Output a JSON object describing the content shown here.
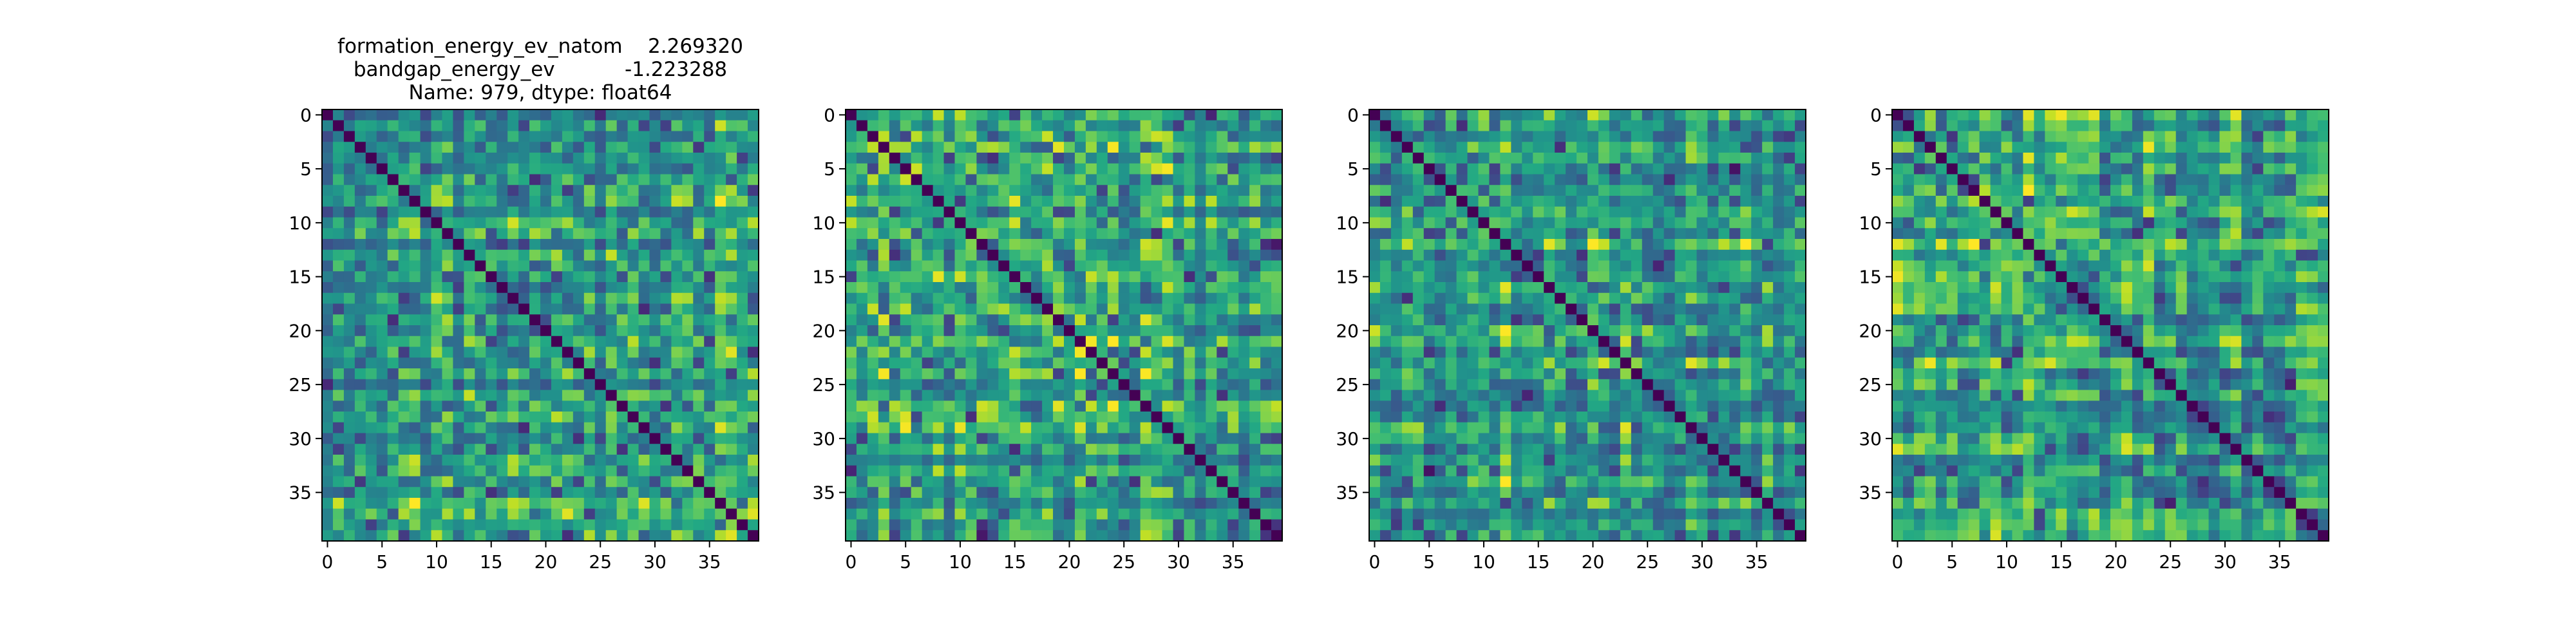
{
  "chart_data": [
    {
      "type": "heatmap",
      "title_lines": [
        "formation_energy_ev_natom    2.269320",
        "bandgap_energy_ev           -1.223288",
        "Name: 979, dtype: float64"
      ],
      "matrix_size": 40,
      "xticks": [
        0,
        5,
        10,
        15,
        20,
        25,
        30,
        35
      ],
      "yticks": [
        0,
        5,
        10,
        15,
        20,
        25,
        30,
        35
      ],
      "colormap": "viridis",
      "seed": 11
    },
    {
      "type": "heatmap",
      "title_lines": [],
      "matrix_size": 40,
      "xticks": [
        0,
        5,
        10,
        15,
        20,
        25,
        30,
        35
      ],
      "yticks": [
        0,
        5,
        10,
        15,
        20,
        25,
        30,
        35
      ],
      "colormap": "viridis",
      "seed": 23
    },
    {
      "type": "heatmap",
      "title_lines": [],
      "matrix_size": 40,
      "xticks": [
        0,
        5,
        10,
        15,
        20,
        25,
        30,
        35
      ],
      "yticks": [
        0,
        5,
        10,
        15,
        20,
        25,
        30,
        35
      ],
      "colormap": "viridis",
      "seed": 37
    },
    {
      "type": "heatmap",
      "title_lines": [],
      "matrix_size": 40,
      "xticks": [
        0,
        5,
        10,
        15,
        20,
        25,
        30,
        35
      ],
      "yticks": [
        0,
        5,
        10,
        15,
        20,
        25,
        30,
        35
      ],
      "colormap": "viridis",
      "seed": 53
    }
  ]
}
